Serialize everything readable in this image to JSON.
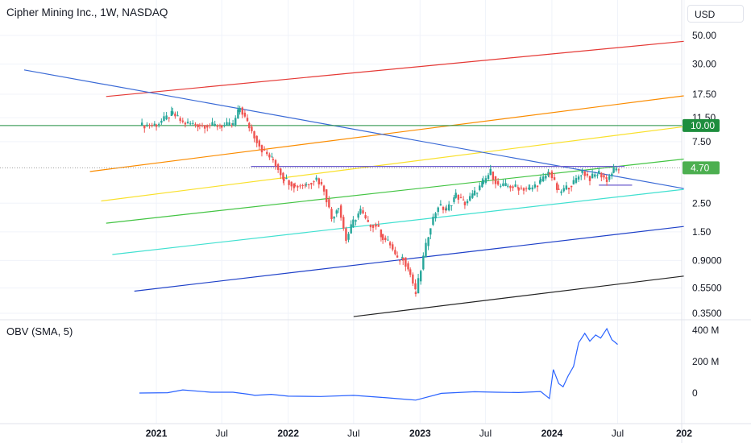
{
  "chart_data": {
    "type": "candlestick",
    "title": "Cipher Mining Inc., 1W, NASDAQ",
    "currency": "USD",
    "y_scale": "log",
    "price_ticks": [
      "50.00",
      "30.00",
      "17.50",
      "11.50",
      "7.50",
      "2.50",
      "1.50",
      "0.9000",
      "0.5500",
      "0.3500"
    ],
    "x_ticks": [
      "2021",
      "Jul",
      "2022",
      "Jul",
      "2023",
      "Jul",
      "2024",
      "Jul",
      "202"
    ],
    "price_badges": [
      {
        "label": "10.00",
        "color": "#1e8e3e"
      },
      {
        "label": "4.70",
        "color": "#4caf50"
      }
    ],
    "price_series": {
      "x": [
        "2020-11-15",
        "2021-01-01",
        "2021-02-15",
        "2021-03-15",
        "2021-05-01",
        "2021-07-01",
        "2021-08-01",
        "2021-08-20",
        "2021-09-15",
        "2021-10-20",
        "2021-11-20",
        "2021-12-20",
        "2022-01-20",
        "2022-02-20",
        "2022-03-20",
        "2022-04-10",
        "2022-05-01",
        "2022-05-20",
        "2022-06-10",
        "2022-06-30",
        "2022-07-20",
        "2022-08-10",
        "2022-09-01",
        "2022-09-20",
        "2022-10-10",
        "2022-10-30",
        "2022-11-15",
        "2022-12-05",
        "2022-12-20",
        "2023-01-10",
        "2023-01-30",
        "2023-02-20",
        "2023-03-15",
        "2023-04-10",
        "2023-05-05",
        "2023-06-01",
        "2023-06-25",
        "2023-07-15",
        "2023-08-05",
        "2023-09-01",
        "2023-10-01",
        "2023-11-01",
        "2023-12-01",
        "2023-12-25",
        "2024-01-20",
        "2024-02-10",
        "2024-03-01",
        "2024-03-25",
        "2024-04-15",
        "2024-05-10",
        "2024-06-01",
        "2024-06-20",
        "2024-07-10"
      ],
      "close": [
        10.0,
        10.2,
        12.4,
        10.5,
        10.1,
        10.0,
        10.1,
        13.8,
        9.8,
        6.5,
        5.4,
        3.9,
        3.4,
        3.5,
        3.9,
        3.2,
        1.9,
        2.4,
        1.3,
        1.8,
        2.2,
        1.7,
        1.7,
        1.35,
        1.2,
        0.9,
        0.95,
        0.7,
        0.5,
        0.95,
        1.7,
        2.4,
        2.2,
        2.9,
        2.5,
        3.0,
        3.6,
        4.4,
        3.4,
        3.4,
        3.3,
        3.2,
        3.7,
        4.4,
        3.0,
        3.3,
        3.6,
        4.4,
        3.9,
        4.3,
        3.8,
        4.5,
        4.7
      ]
    },
    "obv_series": {
      "name": "OBV (SMA, 5)",
      "y_ticks": [
        "400 M",
        "200 M",
        "0"
      ],
      "x": [
        "2020-11-15",
        "2021-02-01",
        "2021-03-15",
        "2021-06-01",
        "2021-08-01",
        "2021-09-15",
        "2021-10-01",
        "2021-11-15",
        "2022-01-01",
        "2022-04-01",
        "2022-07-01",
        "2022-10-01",
        "2022-12-20",
        "2023-03-01",
        "2023-06-01",
        "2023-08-01",
        "2023-10-01",
        "2023-12-01",
        "2023-12-25",
        "2024-01-05",
        "2024-01-20",
        "2024-02-01",
        "2024-02-15",
        "2024-03-01",
        "2024-03-15",
        "2024-04-01",
        "2024-04-15",
        "2024-05-01",
        "2024-05-15",
        "2024-06-01",
        "2024-06-15",
        "2024-07-01"
      ],
      "values": [
        0,
        2,
        20,
        5,
        5,
        -8,
        -15,
        -8,
        -20,
        -22,
        -15,
        -30,
        -45,
        -2,
        8,
        5,
        3,
        10,
        -35,
        150,
        60,
        40,
        110,
        170,
        320,
        380,
        330,
        370,
        350,
        410,
        340,
        310
      ]
    },
    "levels": [
      "10.00",
      "4.70"
    ],
    "annotations": []
  }
}
